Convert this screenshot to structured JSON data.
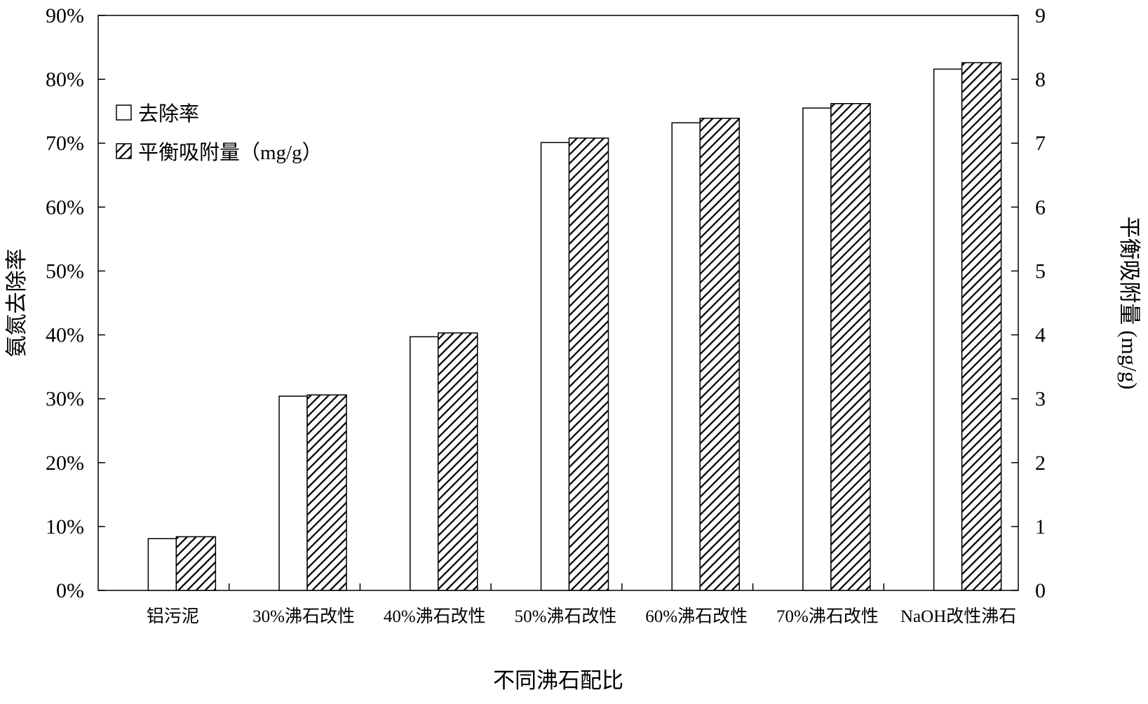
{
  "chart_data": {
    "type": "bar",
    "xlabel": "不同沸石配比",
    "ylabel_left": "氨氮去除率",
    "ylabel_right": "平衡吸附量 (mg/g)",
    "categories": [
      "铝污泥",
      "30%沸石改性",
      "40%沸石改性",
      "50%沸石改性",
      "60%沸石改性",
      "70%沸石改性",
      "NaOH改性沸石"
    ],
    "series": [
      {
        "name": "去除率",
        "axis": "left",
        "unit": "%",
        "fill": "#ffffff",
        "values": [
          8.1,
          30.4,
          39.7,
          70.1,
          73.2,
          75.5,
          81.6
        ]
      },
      {
        "name": "平衡吸附量（mg/g）",
        "axis": "right",
        "unit": "mg/g",
        "fill": "hatched",
        "values": [
          0.84,
          3.06,
          4.03,
          7.08,
          7.39,
          7.62,
          8.26
        ]
      }
    ],
    "ylim_left": [
      0,
      90
    ],
    "ylim_right": [
      0,
      9
    ],
    "yticks_left": [
      "0%",
      "10%",
      "20%",
      "30%",
      "40%",
      "50%",
      "60%",
      "70%",
      "80%",
      "90%"
    ],
    "yticks_right": [
      "0",
      "1",
      "2",
      "3",
      "4",
      "5",
      "6",
      "7",
      "8",
      "9"
    ],
    "legend_position": "upper-left",
    "grid": false
  }
}
